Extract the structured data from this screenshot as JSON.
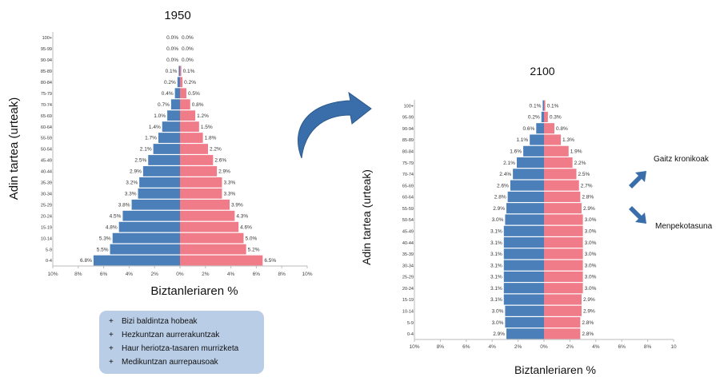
{
  "colors": {
    "male": "#4a7fba",
    "female": "#f07c8a",
    "axis": "#bbbbbb",
    "arrow": "#3a6eaa",
    "box": "#b9cde6"
  },
  "icons": {
    "curved_arrow": "curved-arrow-icon",
    "up_arrow": "up-right-arrow-icon",
    "down_arrow": "down-right-arrow-icon"
  },
  "chart_data": [
    {
      "type": "bar",
      "orientation": "horizontal-population-pyramid",
      "title": "1950",
      "ylabel": "Adin tartea (urteak)",
      "xlabel": "Biztanleriaren %",
      "xlim": [
        -10,
        10
      ],
      "xticks": [
        "10%",
        "8%",
        "6%",
        "4%",
        "2%",
        "0%",
        "2%",
        "4%",
        "6%",
        "8%",
        "10%"
      ],
      "categories": [
        "100+",
        "95-99",
        "90-94",
        "85-89",
        "80-84",
        "75-79",
        "70-74",
        "65-69",
        "60-64",
        "55-59",
        "50-54",
        "45-49",
        "40-44",
        "35-39",
        "30-34",
        "25-29",
        "20-24",
        "15-19",
        "10-14",
        "5-9",
        "0-4"
      ],
      "series": [
        {
          "values": [
            0.0,
            0.0,
            0.0,
            0.1,
            0.2,
            0.4,
            0.7,
            1.0,
            1.4,
            1.7,
            2.1,
            2.5,
            2.9,
            3.2,
            3.3,
            3.8,
            4.5,
            4.8,
            5.3,
            5.5,
            6.8
          ],
          "labels": [
            "0.0%",
            "0.0%",
            "0.0%",
            "0.1%",
            "0.2%",
            "0.4%",
            "0.7%",
            "1.0%",
            "1.4%",
            "1.7%",
            "2.1%",
            "2.5%",
            "2.9%",
            "3.2%",
            "3.3%",
            "3.8%",
            "4.5%",
            "4.8%",
            "5.3%",
            "5.5%",
            "6.8%"
          ]
        },
        {
          "values": [
            0.0,
            0.0,
            0.0,
            0.1,
            0.2,
            0.5,
            0.8,
            1.2,
            1.5,
            1.8,
            2.2,
            2.6,
            2.9,
            3.3,
            3.3,
            3.9,
            4.3,
            4.6,
            5.0,
            5.2,
            6.5
          ],
          "labels": [
            "0.0%",
            "0.0%",
            "0.0%",
            "0.1%",
            "0.2%",
            "0.5%",
            "0.8%",
            "1.2%",
            "1.5%",
            "1.8%",
            "2.2%",
            "2.6%",
            "2.9%",
            "3.3%",
            "3.3%",
            "3.9%",
            "4.3%",
            "4.6%",
            "5.0%",
            "5.2%",
            "6.5%"
          ]
        }
      ]
    },
    {
      "type": "bar",
      "orientation": "horizontal-population-pyramid",
      "title": "2100",
      "ylabel": "Adin tartea (urteak)",
      "xlabel": "Biztanleriaren %",
      "xlim": [
        -10,
        10
      ],
      "xticks": [
        "10%",
        "8%",
        "6%",
        "4%",
        "2%",
        "0%",
        "2%",
        "4%",
        "6%",
        "8%",
        "10"
      ],
      "categories": [
        "100+",
        "95-99",
        "90-94",
        "85-89",
        "80-84",
        "75-79",
        "70-74",
        "65-69",
        "60-64",
        "55-59",
        "50-54",
        "45-49",
        "40-44",
        "35-39",
        "30-34",
        "25-29",
        "20-24",
        "15-19",
        "10-14",
        "5-9",
        "0-4"
      ],
      "series": [
        {
          "values": [
            0.1,
            0.2,
            0.6,
            1.1,
            1.6,
            2.1,
            2.4,
            2.6,
            2.8,
            2.9,
            3.0,
            3.1,
            3.1,
            3.1,
            3.1,
            3.1,
            3.1,
            3.1,
            3.0,
            3.0,
            2.9
          ],
          "labels": [
            "0.1%",
            "0.2%",
            "0.6%",
            "1.1%",
            "1.6%",
            "2.1%",
            "2.4%",
            "2.6%",
            "2.8%",
            "2.9%",
            "3.0%",
            "3.1%",
            "3.1%",
            "3.1%",
            "3.1%",
            "3.1%",
            "3.1%",
            "3.1%",
            "3.0%",
            "3.0%",
            "2.9%"
          ]
        },
        {
          "values": [
            0.1,
            0.3,
            0.8,
            1.3,
            1.9,
            2.2,
            2.5,
            2.7,
            2.8,
            2.9,
            3.0,
            3.0,
            3.0,
            3.0,
            3.0,
            3.0,
            3.0,
            2.9,
            2.9,
            2.8,
            2.8
          ],
          "labels": [
            "0.1%",
            "0.3%",
            "0.8%",
            "1.3%",
            "1.9%",
            "2.2%",
            "2.5%",
            "2.7%",
            "2.8%",
            "2.9%",
            "3.0%",
            "3.0%",
            "3.0%",
            "3.0%",
            "3.0%",
            "3.0%",
            "3.0%",
            "2.9%",
            "2.9%",
            "2.8%",
            "2.8%"
          ]
        }
      ]
    }
  ],
  "improvements_box": {
    "items": [
      "Bizi baldintza hobeak",
      "Hezkuntzan aurrerakuntzak",
      "Haur heriotza-tasaren murrizketa",
      "Medikuntzan aurrepausoak"
    ],
    "bullet": "+"
  },
  "side_labels": {
    "chronic": "Gaitz kronikoak",
    "dependency": "Menpekotasuna"
  }
}
